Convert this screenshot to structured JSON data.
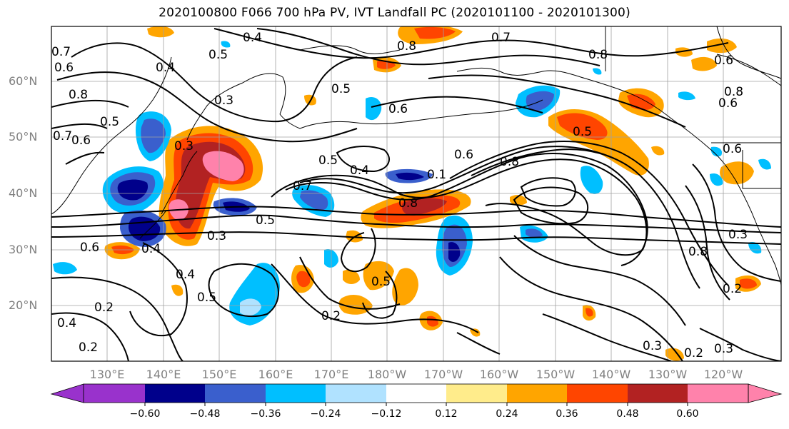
{
  "title": "2020100800 F066 700 hPa PV, IVT Landfall PC (2020101100 - 2020101300)",
  "lat_labels": [
    "60°N",
    "50°N",
    "40°N",
    "30°N",
    "20°N"
  ],
  "lon_labels": [
    "130°E",
    "140°E",
    "150°E",
    "160°E",
    "170°E",
    "180°W",
    "170°W",
    "160°W",
    "150°W",
    "140°W",
    "130°W",
    "120°W"
  ],
  "colorbar": {
    "ticks": [
      "−0.60",
      "−0.48",
      "−0.36",
      "−0.24",
      "−0.12",
      "0.12",
      "0.24",
      "0.36",
      "0.48",
      "0.60"
    ],
    "colors": [
      "#9932cc",
      "#00008b",
      "#3a5fcd",
      "#00bfff",
      "#b0e2ff",
      "#ffffff",
      "#ffec8b",
      "#ffa500",
      "#ff4500",
      "#b22222",
      "#ff82ab"
    ],
    "extend": "both"
  },
  "contour_labels": [
    "0.4",
    "0.5",
    "0.7",
    "0.6",
    "0.8",
    "0.3",
    "0.5",
    "0.7",
    "0.6",
    "0.8",
    "0.5",
    "0.6",
    "0.4",
    "0.5",
    "0.4",
    "0.7",
    "0.3",
    "0.5",
    "0.8",
    "0.4",
    "0.5",
    "0.3",
    "0.4",
    "0.6",
    "0.2",
    "0.5",
    "0.2",
    "0.4",
    "0.2",
    "0.8",
    "0.6",
    "0.8",
    "0.6",
    "0.7",
    "0.6",
    "0.8",
    "0.2",
    "0.3",
    "0.2",
    "0.3",
    "0.6",
    "0.8",
    "0.3",
    "0.5",
    "0.1"
  ]
}
